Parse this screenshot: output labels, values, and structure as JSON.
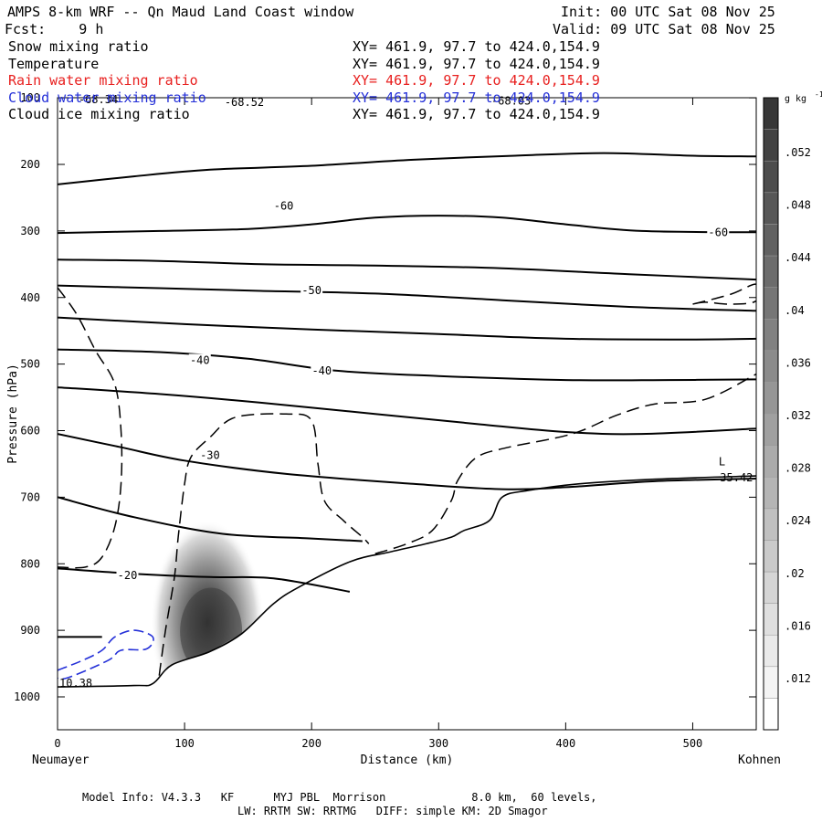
{
  "header": {
    "title": "AMPS 8-km WRF -- Qn Maud Land Coast window",
    "forecast": "Fcst:    9 h",
    "init": "Init: 00 UTC Sat 08 Nov 25",
    "valid": "Valid: 09 UTC Sat 08 Nov 25"
  },
  "legend": [
    {
      "name": "Snow mixing ratio",
      "xy": "XY= 461.9, 97.7 to 424.0,154.9",
      "color": "#000000"
    },
    {
      "name": "Temperature",
      "xy": "XY= 461.9, 97.7 to 424.0,154.9",
      "color": "#000000"
    },
    {
      "name": "Rain water mixing ratio",
      "xy": "XY= 461.9, 97.7 to 424.0,154.9",
      "color": "#e8201f"
    },
    {
      "name": "Cloud water mixing ratio",
      "xy": "XY= 461.9, 97.7 to 424.0,154.9",
      "color": "#2430d8"
    },
    {
      "name": "Cloud ice mixing ratio",
      "xy": "XY= 461.9, 97.7 to 424.0,154.9",
      "color": "#000000"
    }
  ],
  "footer": {
    "line1": "Model Info: V4.3.3   KF      MYJ PBL  Morrison             8.0 km,  60 levels,",
    "line2": "LW: RRTM SW: RRTMG   DIFF: simple KM: 2D Smagor"
  },
  "chart_data": {
    "type": "contour-cross-section",
    "title": "AMPS 8-km WRF -- Qn Maud Land Coast window",
    "xlabel": "Distance (km)",
    "ylabel": "Pressure (hPa)",
    "xlim": [
      0,
      550
    ],
    "ylim": [
      1050,
      100
    ],
    "xticks": [
      0,
      100,
      200,
      300,
      400,
      500
    ],
    "yticks": [
      100,
      200,
      300,
      400,
      500,
      600,
      700,
      800,
      900,
      1000
    ],
    "x_endpoints": {
      "left": "Neumayer",
      "right": "Kohnen"
    },
    "colorbar": {
      "unit": "g kg",
      "unit_exp": "-1",
      "ticks": [
        ".012",
        ".016",
        ".02",
        ".024",
        ".028",
        ".032",
        ".036",
        ".04",
        ".044",
        ".048",
        ".052"
      ]
    },
    "temperature_labels": [
      {
        "text": "-60",
        "x": 178,
        "p": 265
      },
      {
        "text": "-60",
        "x": 520,
        "p": 305
      },
      {
        "text": "-50",
        "x": 200,
        "p": 392
      },
      {
        "text": "-40",
        "x": 112,
        "p": 497
      },
      {
        "text": "-40",
        "x": 208,
        "p": 513
      },
      {
        "text": "-30",
        "x": 120,
        "p": 640
      },
      {
        "text": "-20",
        "x": 55,
        "p": 820
      }
    ],
    "annotations": [
      {
        "text": "-68.34",
        "x": 15,
        "p": 108
      },
      {
        "text": "-68.52",
        "x": 130,
        "p": 112
      },
      {
        "text": "-68.03",
        "x": 340,
        "p": 110
      },
      {
        "text": "L",
        "x": 519,
        "p": 652
      },
      {
        "text": "35.42",
        "x": 520,
        "p": 676
      },
      {
        "text": "10.38",
        "x": 0,
        "p": 985
      }
    ],
    "temperature_contours": [
      {
        "level": -65,
        "points": [
          [
            0,
            230
          ],
          [
            60,
            218
          ],
          [
            120,
            208
          ],
          [
            200,
            202
          ],
          [
            280,
            193
          ],
          [
            360,
            187
          ],
          [
            430,
            183
          ],
          [
            500,
            187
          ],
          [
            550,
            188
          ]
        ]
      },
      {
        "level": -60,
        "points": [
          [
            0,
            303
          ],
          [
            80,
            300
          ],
          [
            150,
            297
          ],
          [
            200,
            290
          ],
          [
            250,
            280
          ],
          [
            300,
            277
          ],
          [
            350,
            280
          ],
          [
            400,
            290
          ],
          [
            460,
            300
          ],
          [
            550,
            302
          ]
        ]
      },
      {
        "level": -55,
        "points": [
          [
            0,
            343
          ],
          [
            80,
            345
          ],
          [
            160,
            350
          ],
          [
            250,
            352
          ],
          [
            350,
            356
          ],
          [
            450,
            365
          ],
          [
            550,
            373
          ]
        ]
      },
      {
        "level": -50,
        "points": [
          [
            0,
            382
          ],
          [
            80,
            386
          ],
          [
            160,
            390
          ],
          [
            250,
            394
          ],
          [
            350,
            404
          ],
          [
            450,
            414
          ],
          [
            550,
            420
          ]
        ]
      },
      {
        "level": -45,
        "points": [
          [
            0,
            430
          ],
          [
            100,
            440
          ],
          [
            200,
            448
          ],
          [
            300,
            455
          ],
          [
            400,
            462
          ],
          [
            500,
            463
          ],
          [
            550,
            462
          ]
        ]
      },
      {
        "level": -40,
        "points": [
          [
            0,
            478
          ],
          [
            80,
            482
          ],
          [
            150,
            492
          ],
          [
            220,
            510
          ],
          [
            300,
            518
          ],
          [
            400,
            524
          ],
          [
            480,
            524
          ],
          [
            550,
            523
          ]
        ]
      },
      {
        "level": -35,
        "points": [
          [
            0,
            535
          ],
          [
            80,
            545
          ],
          [
            160,
            558
          ],
          [
            250,
            575
          ],
          [
            330,
            590
          ],
          [
            400,
            602
          ],
          [
            460,
            605
          ],
          [
            550,
            597
          ]
        ]
      },
      {
        "level": -30,
        "points": [
          [
            0,
            605
          ],
          [
            50,
            625
          ],
          [
            100,
            645
          ],
          [
            180,
            665
          ],
          [
            280,
            680
          ],
          [
            350,
            688
          ],
          [
            400,
            685
          ],
          [
            470,
            676
          ],
          [
            550,
            672
          ]
        ]
      },
      {
        "level": -25,
        "points": [
          [
            0,
            700
          ],
          [
            60,
            730
          ],
          [
            130,
            755
          ],
          [
            200,
            762
          ],
          [
            240,
            766
          ]
        ]
      },
      {
        "level": -20,
        "points": [
          [
            0,
            807
          ],
          [
            60,
            815
          ],
          [
            120,
            820
          ],
          [
            170,
            822
          ],
          [
            230,
            842
          ]
        ]
      },
      {
        "level": -15,
        "points": [
          [
            0,
            910
          ],
          [
            35,
            910
          ]
        ]
      }
    ],
    "terrain": [
      [
        0,
        985
      ],
      [
        60,
        983
      ],
      [
        75,
        980
      ],
      [
        90,
        952
      ],
      [
        120,
        932
      ],
      [
        145,
        905
      ],
      [
        170,
        860
      ],
      [
        190,
        835
      ],
      [
        230,
        797
      ],
      [
        260,
        783
      ],
      [
        290,
        770
      ],
      [
        310,
        760
      ],
      [
        320,
        750
      ],
      [
        340,
        735
      ],
      [
        350,
        700
      ],
      [
        370,
        690
      ],
      [
        410,
        680
      ],
      [
        470,
        673
      ],
      [
        550,
        668
      ]
    ],
    "snow_dashed_contours": [
      [
        [
          0,
          385
        ],
        [
          15,
          425
        ],
        [
          30,
          480
        ],
        [
          45,
          530
        ],
        [
          50,
          600
        ],
        [
          50,
          680
        ],
        [
          45,
          745
        ],
        [
          35,
          790
        ],
        [
          22,
          805
        ],
        [
          0,
          805
        ]
      ],
      [
        [
          80,
          968
        ],
        [
          85,
          900
        ],
        [
          92,
          820
        ],
        [
          95,
          760
        ],
        [
          100,
          680
        ],
        [
          105,
          640
        ],
        [
          120,
          610
        ],
        [
          140,
          580
        ],
        [
          180,
          575
        ],
        [
          200,
          585
        ],
        [
          205,
          650
        ],
        [
          210,
          705
        ],
        [
          225,
          735
        ],
        [
          240,
          760
        ],
        [
          245,
          770
        ]
      ],
      [
        [
          250,
          785
        ],
        [
          275,
          770
        ],
        [
          295,
          750
        ],
        [
          310,
          705
        ],
        [
          315,
          675
        ],
        [
          330,
          640
        ],
        [
          355,
          625
        ],
        [
          405,
          605
        ],
        [
          440,
          577
        ],
        [
          470,
          560
        ],
        [
          510,
          553
        ],
        [
          550,
          515
        ]
      ],
      [
        [
          500,
          410
        ],
        [
          530,
          395
        ],
        [
          550,
          380
        ],
        [
          550,
          405
        ],
        [
          530,
          410
        ],
        [
          510,
          407
        ],
        [
          500,
          410
        ]
      ]
    ],
    "cloud_water_contours": [
      [
        [
          0,
          960
        ],
        [
          20,
          945
        ],
        [
          35,
          930
        ],
        [
          45,
          910
        ],
        [
          60,
          900
        ],
        [
          75,
          910
        ],
        [
          70,
          928
        ],
        [
          50,
          930
        ],
        [
          40,
          945
        ],
        [
          10,
          970
        ],
        [
          0,
          972
        ],
        [
          0,
          960
        ]
      ]
    ],
    "rain_shading": {
      "center_x": 118,
      "center_p": 895,
      "max": 0.052
    }
  }
}
